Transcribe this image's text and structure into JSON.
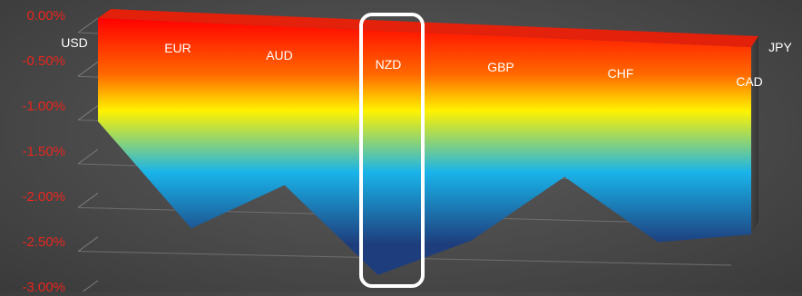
{
  "chart_data": {
    "type": "area",
    "view": "3d",
    "title": "",
    "xlabel": "",
    "ylabel": "",
    "categories": [
      "USD",
      "EUR",
      "AUD",
      "NZD",
      "GBP",
      "CHF",
      "CAD",
      "JPY"
    ],
    "series": [
      {
        "values": [
          -1.18,
          -2.38,
          -1.85,
          -2.88,
          -2.45,
          -1.66,
          -2.42,
          -2.3
        ]
      }
    ],
    "y_ticks": [
      "0.00%",
      "-0.50%",
      "-1.00%",
      "-1.50%",
      "-2.00%",
      "-2.50%",
      "-3.00%"
    ],
    "ylim": [
      -3.0,
      0.0
    ],
    "grid": true,
    "legend": "none",
    "highlight": {
      "category": "NZD",
      "style": "white rounded outline"
    },
    "colors": {
      "gradient": [
        "#ff0000",
        "#ff6a00",
        "#fff200",
        "#19b4ea",
        "#1e3d7c"
      ],
      "axis_text": "#e8261e",
      "category_text": "#ffffff",
      "background": "#4a4a4a"
    }
  }
}
